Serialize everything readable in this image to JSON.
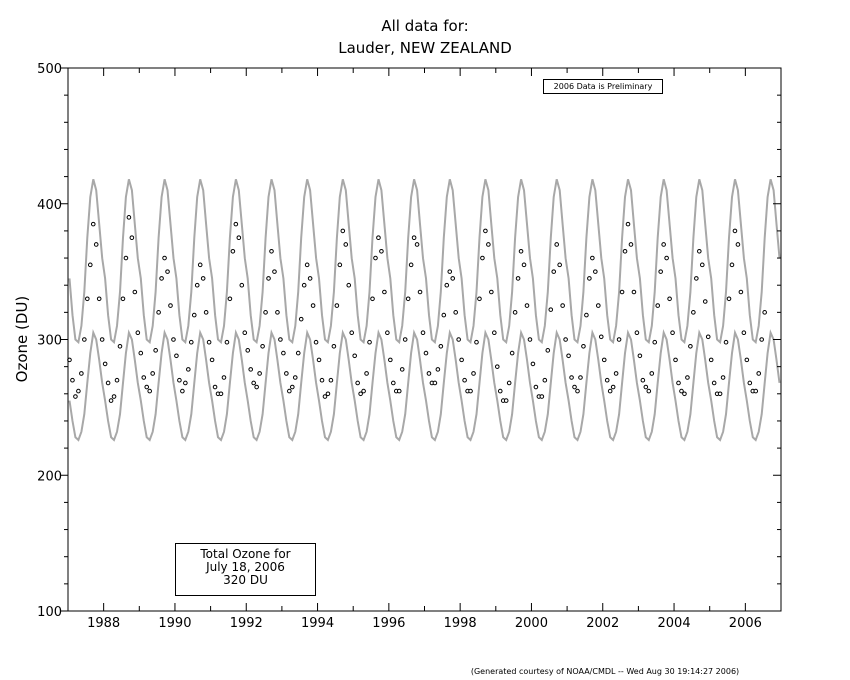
{
  "title_line1": "All data for:",
  "title_line2": "Lauder, NEW ZEALAND",
  "preliminary_note": "2006 Data is Preliminary",
  "info_box": {
    "line1": "Total Ozone for",
    "line2": "July 18, 2006",
    "line3": "320 DU"
  },
  "footer": "(Generated courtesy of NOAA/CMDL -- Wed Aug 30 19:14:27 2006)",
  "chart_data": {
    "type": "scatter",
    "title": "All data for: Lauder, NEW ZEALAND",
    "xlabel": "",
    "ylabel": "Ozone (DU)",
    "xlim": [
      1987,
      2007
    ],
    "ylim": [
      100,
      500
    ],
    "x_ticks": [
      "1988",
      "1990",
      "1992",
      "1994",
      "1996",
      "1998",
      "2000",
      "2002",
      "2004",
      "2006"
    ],
    "y_ticks": [
      "100",
      "200",
      "300",
      "400",
      "500"
    ],
    "grid": false,
    "colors": {
      "observations": "#000000",
      "climatology_envelope": "#a8a8a8"
    },
    "climatology_envelope_monthly": {
      "upper": [
        345,
        318,
        300,
        298,
        310,
        335,
        375,
        405,
        418,
        410,
        385,
        360
      ],
      "lower": [
        255,
        240,
        228,
        226,
        232,
        245,
        268,
        290,
        305,
        300,
        285,
        268
      ]
    },
    "observations_monthly": [
      {
        "year": 1987,
        "values": [
          285,
          270,
          258,
          262,
          275,
          300,
          330,
          355,
          385,
          370,
          330,
          300
        ]
      },
      {
        "year": 1988,
        "values": [
          282,
          268,
          255,
          258,
          270,
          295,
          330,
          360,
          390,
          375,
          335,
          305
        ]
      },
      {
        "year": 1989,
        "values": [
          290,
          272,
          265,
          262,
          275,
          292,
          320,
          345,
          360,
          350,
          325,
          300
        ]
      },
      {
        "year": 1990,
        "values": [
          288,
          270,
          262,
          268,
          278,
          298,
          318,
          340,
          355,
          345,
          320,
          298
        ]
      },
      {
        "year": 1991,
        "values": [
          285,
          265,
          260,
          260,
          272,
          298,
          330,
          365,
          385,
          375,
          340,
          305
        ]
      },
      {
        "year": 1992,
        "values": [
          292,
          278,
          268,
          265,
          275,
          295,
          320,
          345,
          365,
          350,
          320,
          300
        ]
      },
      {
        "year": 1993,
        "values": [
          290,
          275,
          262,
          265,
          272,
          290,
          315,
          340,
          355,
          345,
          325,
          298
        ]
      },
      {
        "year": 1994,
        "values": [
          285,
          270,
          258,
          260,
          270,
          295,
          325,
          355,
          380,
          370,
          340,
          305
        ]
      },
      {
        "year": 1995,
        "values": [
          288,
          268,
          260,
          262,
          275,
          298,
          330,
          360,
          375,
          365,
          335,
          305
        ]
      },
      {
        "year": 1996,
        "values": [
          285,
          268,
          262,
          262,
          278,
          300,
          330,
          355,
          375,
          370,
          335,
          305
        ]
      },
      {
        "year": 1997,
        "values": [
          290,
          275,
          268,
          268,
          278,
          295,
          318,
          340,
          350,
          345,
          320,
          300
        ]
      },
      {
        "year": 1998,
        "values": [
          285,
          270,
          262,
          262,
          275,
          298,
          330,
          360,
          380,
          370,
          335,
          305
        ]
      },
      {
        "year": 1999,
        "values": [
          280,
          262,
          255,
          255,
          268,
          290,
          320,
          345,
          365,
          355,
          325,
          300
        ]
      },
      {
        "year": 2000,
        "values": [
          282,
          265,
          258,
          258,
          270,
          292,
          322,
          350,
          370,
          355,
          325,
          300
        ]
      },
      {
        "year": 2001,
        "values": [
          288,
          272,
          265,
          262,
          272,
          295,
          318,
          345,
          360,
          350,
          325,
          302
        ]
      },
      {
        "year": 2002,
        "values": [
          285,
          270,
          262,
          265,
          275,
          300,
          335,
          365,
          385,
          370,
          335,
          305
        ]
      },
      {
        "year": 2003,
        "values": [
          288,
          270,
          265,
          262,
          275,
          298,
          325,
          350,
          370,
          360,
          330,
          305
        ]
      },
      {
        "year": 2004,
        "values": [
          285,
          268,
          262,
          260,
          272,
          295,
          320,
          345,
          365,
          355,
          328,
          302
        ]
      },
      {
        "year": 2005,
        "values": [
          285,
          268,
          260,
          260,
          272,
          298,
          330,
          355,
          380,
          370,
          335,
          305
        ]
      },
      {
        "year": 2006,
        "values": [
          285,
          268,
          262,
          262,
          275,
          300,
          320
        ]
      }
    ]
  }
}
